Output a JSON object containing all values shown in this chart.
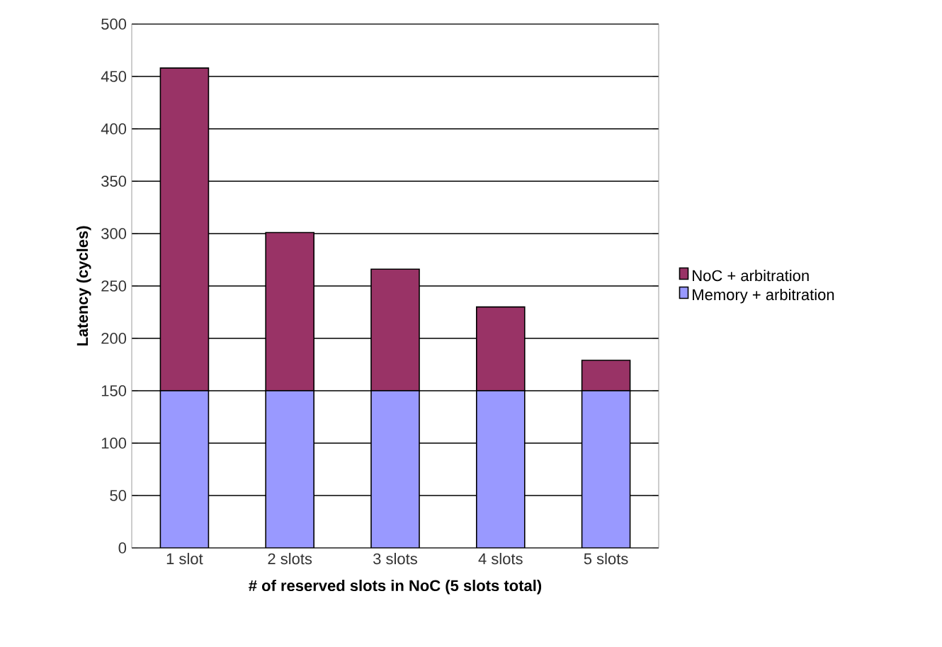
{
  "chart_data": {
    "type": "bar",
    "stacked": true,
    "xlabel": "# of reserved slots in NoC (5 slots total)",
    "ylabel": "Latency (cycles)",
    "categories": [
      "1 slot",
      "2 slots",
      "3 slots",
      "4 slots",
      "5 slots"
    ],
    "series": [
      {
        "name": "Memory + arbitration",
        "color": "#9999ff",
        "values": [
          150,
          150,
          150,
          150,
          150
        ]
      },
      {
        "name": "NoC + arbitration",
        "color": "#993366",
        "values": [
          308,
          151,
          116,
          80,
          29
        ]
      }
    ],
    "ylim": [
      0,
      500
    ],
    "yticks": [
      0,
      50,
      100,
      150,
      200,
      250,
      300,
      350,
      400,
      450,
      500
    ],
    "grid": "y",
    "legend": "right"
  }
}
